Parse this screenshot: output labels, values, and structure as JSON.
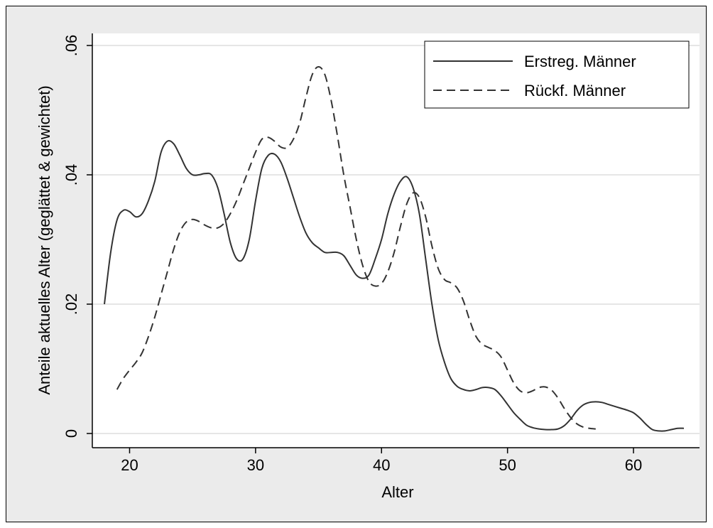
{
  "chart_data": {
    "type": "line",
    "title": "",
    "xlabel": "Alter",
    "ylabel": "Anteile aktuelles Alter (geglättet & gewichtet)",
    "xlim": [
      18,
      64
    ],
    "ylim": [
      0,
      0.06
    ],
    "x_ticks": [
      20,
      30,
      40,
      50,
      60
    ],
    "x_tick_labels": [
      "20",
      "30",
      "40",
      "50",
      "60"
    ],
    "y_ticks": [
      0,
      0.02,
      0.04,
      0.06
    ],
    "y_tick_labels": [
      "0",
      ".02",
      ".04",
      ".06"
    ],
    "grid": "horizontal",
    "legend_position": "top-right",
    "series": [
      {
        "name": "Erstreg. Männer",
        "style": "solid",
        "color": "#333333",
        "points": [
          [
            18,
            0.02
          ],
          [
            18.5,
            0.028
          ],
          [
            19,
            0.033
          ],
          [
            19.5,
            0.0345
          ],
          [
            20,
            0.0343
          ],
          [
            20.5,
            0.0335
          ],
          [
            21,
            0.034
          ],
          [
            21.5,
            0.036
          ],
          [
            22,
            0.039
          ],
          [
            22.5,
            0.0435
          ],
          [
            23,
            0.0452
          ],
          [
            23.5,
            0.0448
          ],
          [
            24,
            0.043
          ],
          [
            24.5,
            0.041
          ],
          [
            25,
            0.04
          ],
          [
            25.5,
            0.04
          ],
          [
            26,
            0.0402
          ],
          [
            26.5,
            0.04
          ],
          [
            27,
            0.038
          ],
          [
            27.5,
            0.034
          ],
          [
            28,
            0.0295
          ],
          [
            28.5,
            0.027
          ],
          [
            29,
            0.027
          ],
          [
            29.5,
            0.03
          ],
          [
            30,
            0.036
          ],
          [
            30.5,
            0.041
          ],
          [
            31,
            0.043
          ],
          [
            31.5,
            0.0432
          ],
          [
            32,
            0.042
          ],
          [
            32.5,
            0.0395
          ],
          [
            33,
            0.0365
          ],
          [
            33.5,
            0.0335
          ],
          [
            34,
            0.031
          ],
          [
            34.5,
            0.0295
          ],
          [
            35,
            0.0287
          ],
          [
            35.5,
            0.028
          ],
          [
            36,
            0.028
          ],
          [
            36.5,
            0.028
          ],
          [
            37,
            0.0275
          ],
          [
            37.5,
            0.026
          ],
          [
            38,
            0.0245
          ],
          [
            38.5,
            0.024
          ],
          [
            39,
            0.0245
          ],
          [
            39.5,
            0.027
          ],
          [
            40,
            0.03
          ],
          [
            40.5,
            0.034
          ],
          [
            41,
            0.037
          ],
          [
            41.5,
            0.039
          ],
          [
            42,
            0.0397
          ],
          [
            42.5,
            0.038
          ],
          [
            43,
            0.034
          ],
          [
            43.5,
            0.027
          ],
          [
            44,
            0.02
          ],
          [
            44.5,
            0.0145
          ],
          [
            45,
            0.011
          ],
          [
            45.5,
            0.0085
          ],
          [
            46,
            0.0073
          ],
          [
            46.5,
            0.0068
          ],
          [
            47,
            0.0066
          ],
          [
            47.5,
            0.0068
          ],
          [
            48,
            0.0071
          ],
          [
            48.5,
            0.0071
          ],
          [
            49,
            0.0068
          ],
          [
            49.5,
            0.0058
          ],
          [
            50,
            0.0045
          ],
          [
            50.5,
            0.0032
          ],
          [
            51,
            0.0022
          ],
          [
            51.5,
            0.0013
          ],
          [
            52,
            0.0009
          ],
          [
            52.5,
            0.0007
          ],
          [
            53,
            0.0006
          ],
          [
            53.5,
            0.0006
          ],
          [
            54,
            0.0007
          ],
          [
            54.5,
            0.0012
          ],
          [
            55,
            0.0022
          ],
          [
            55.5,
            0.0035
          ],
          [
            56,
            0.0044
          ],
          [
            56.5,
            0.0048
          ],
          [
            57,
            0.0049
          ],
          [
            57.5,
            0.0048
          ],
          [
            58,
            0.0045
          ],
          [
            58.5,
            0.0042
          ],
          [
            59,
            0.0039
          ],
          [
            59.5,
            0.0036
          ],
          [
            60,
            0.0032
          ],
          [
            60.5,
            0.0024
          ],
          [
            61,
            0.0014
          ],
          [
            61.5,
            0.0006
          ],
          [
            62,
            0.0004
          ],
          [
            62.5,
            0.0004
          ],
          [
            63,
            0.0006
          ],
          [
            63.5,
            0.0008
          ],
          [
            64,
            0.0008
          ]
        ]
      },
      {
        "name": "Rückf. Männer",
        "style": "dashed",
        "color": "#333333",
        "points": [
          [
            19,
            0.0068
          ],
          [
            19.5,
            0.0085
          ],
          [
            20,
            0.0098
          ],
          [
            20.5,
            0.011
          ],
          [
            21,
            0.0125
          ],
          [
            21.5,
            0.015
          ],
          [
            22,
            0.018
          ],
          [
            22.5,
            0.0215
          ],
          [
            23,
            0.025
          ],
          [
            23.5,
            0.0285
          ],
          [
            24,
            0.0312
          ],
          [
            24.5,
            0.0327
          ],
          [
            25,
            0.0331
          ],
          [
            25.5,
            0.0328
          ],
          [
            26,
            0.0322
          ],
          [
            26.5,
            0.0318
          ],
          [
            27,
            0.0318
          ],
          [
            27.5,
            0.0325
          ],
          [
            28,
            0.034
          ],
          [
            28.5,
            0.036
          ],
          [
            29,
            0.0385
          ],
          [
            29.5,
            0.041
          ],
          [
            30,
            0.0435
          ],
          [
            30.5,
            0.0455
          ],
          [
            31,
            0.0458
          ],
          [
            31.5,
            0.0452
          ],
          [
            32,
            0.0443
          ],
          [
            32.5,
            0.0442
          ],
          [
            33,
            0.0455
          ],
          [
            33.5,
            0.048
          ],
          [
            34,
            0.052
          ],
          [
            34.5,
            0.0555
          ],
          [
            35,
            0.0567
          ],
          [
            35.5,
            0.0555
          ],
          [
            36,
            0.0515
          ],
          [
            36.5,
            0.046
          ],
          [
            37,
            0.04
          ],
          [
            37.5,
            0.035
          ],
          [
            38,
            0.03
          ],
          [
            38.5,
            0.026
          ],
          [
            39,
            0.0235
          ],
          [
            39.5,
            0.0228
          ],
          [
            40,
            0.0232
          ],
          [
            40.5,
            0.025
          ],
          [
            41,
            0.028
          ],
          [
            41.5,
            0.032
          ],
          [
            42,
            0.0355
          ],
          [
            42.5,
            0.0372
          ],
          [
            43,
            0.0365
          ],
          [
            43.5,
            0.0335
          ],
          [
            44,
            0.029
          ],
          [
            44.5,
            0.0255
          ],
          [
            45,
            0.0238
          ],
          [
            45.5,
            0.0233
          ],
          [
            46,
            0.0225
          ],
          [
            46.5,
            0.0205
          ],
          [
            47,
            0.0175
          ],
          [
            47.5,
            0.015
          ],
          [
            48,
            0.0138
          ],
          [
            48.5,
            0.0133
          ],
          [
            49,
            0.0128
          ],
          [
            49.5,
            0.0118
          ],
          [
            50,
            0.0098
          ],
          [
            50.5,
            0.0078
          ],
          [
            51,
            0.0066
          ],
          [
            51.5,
            0.0063
          ],
          [
            52,
            0.0066
          ],
          [
            52.5,
            0.0071
          ],
          [
            53,
            0.0072
          ],
          [
            53.5,
            0.0067
          ],
          [
            54,
            0.0055
          ],
          [
            54.5,
            0.0039
          ],
          [
            55,
            0.0025
          ],
          [
            55.5,
            0.0015
          ],
          [
            56,
            0.001
          ],
          [
            56.5,
            0.0008
          ],
          [
            57,
            0.0007
          ]
        ]
      }
    ]
  }
}
